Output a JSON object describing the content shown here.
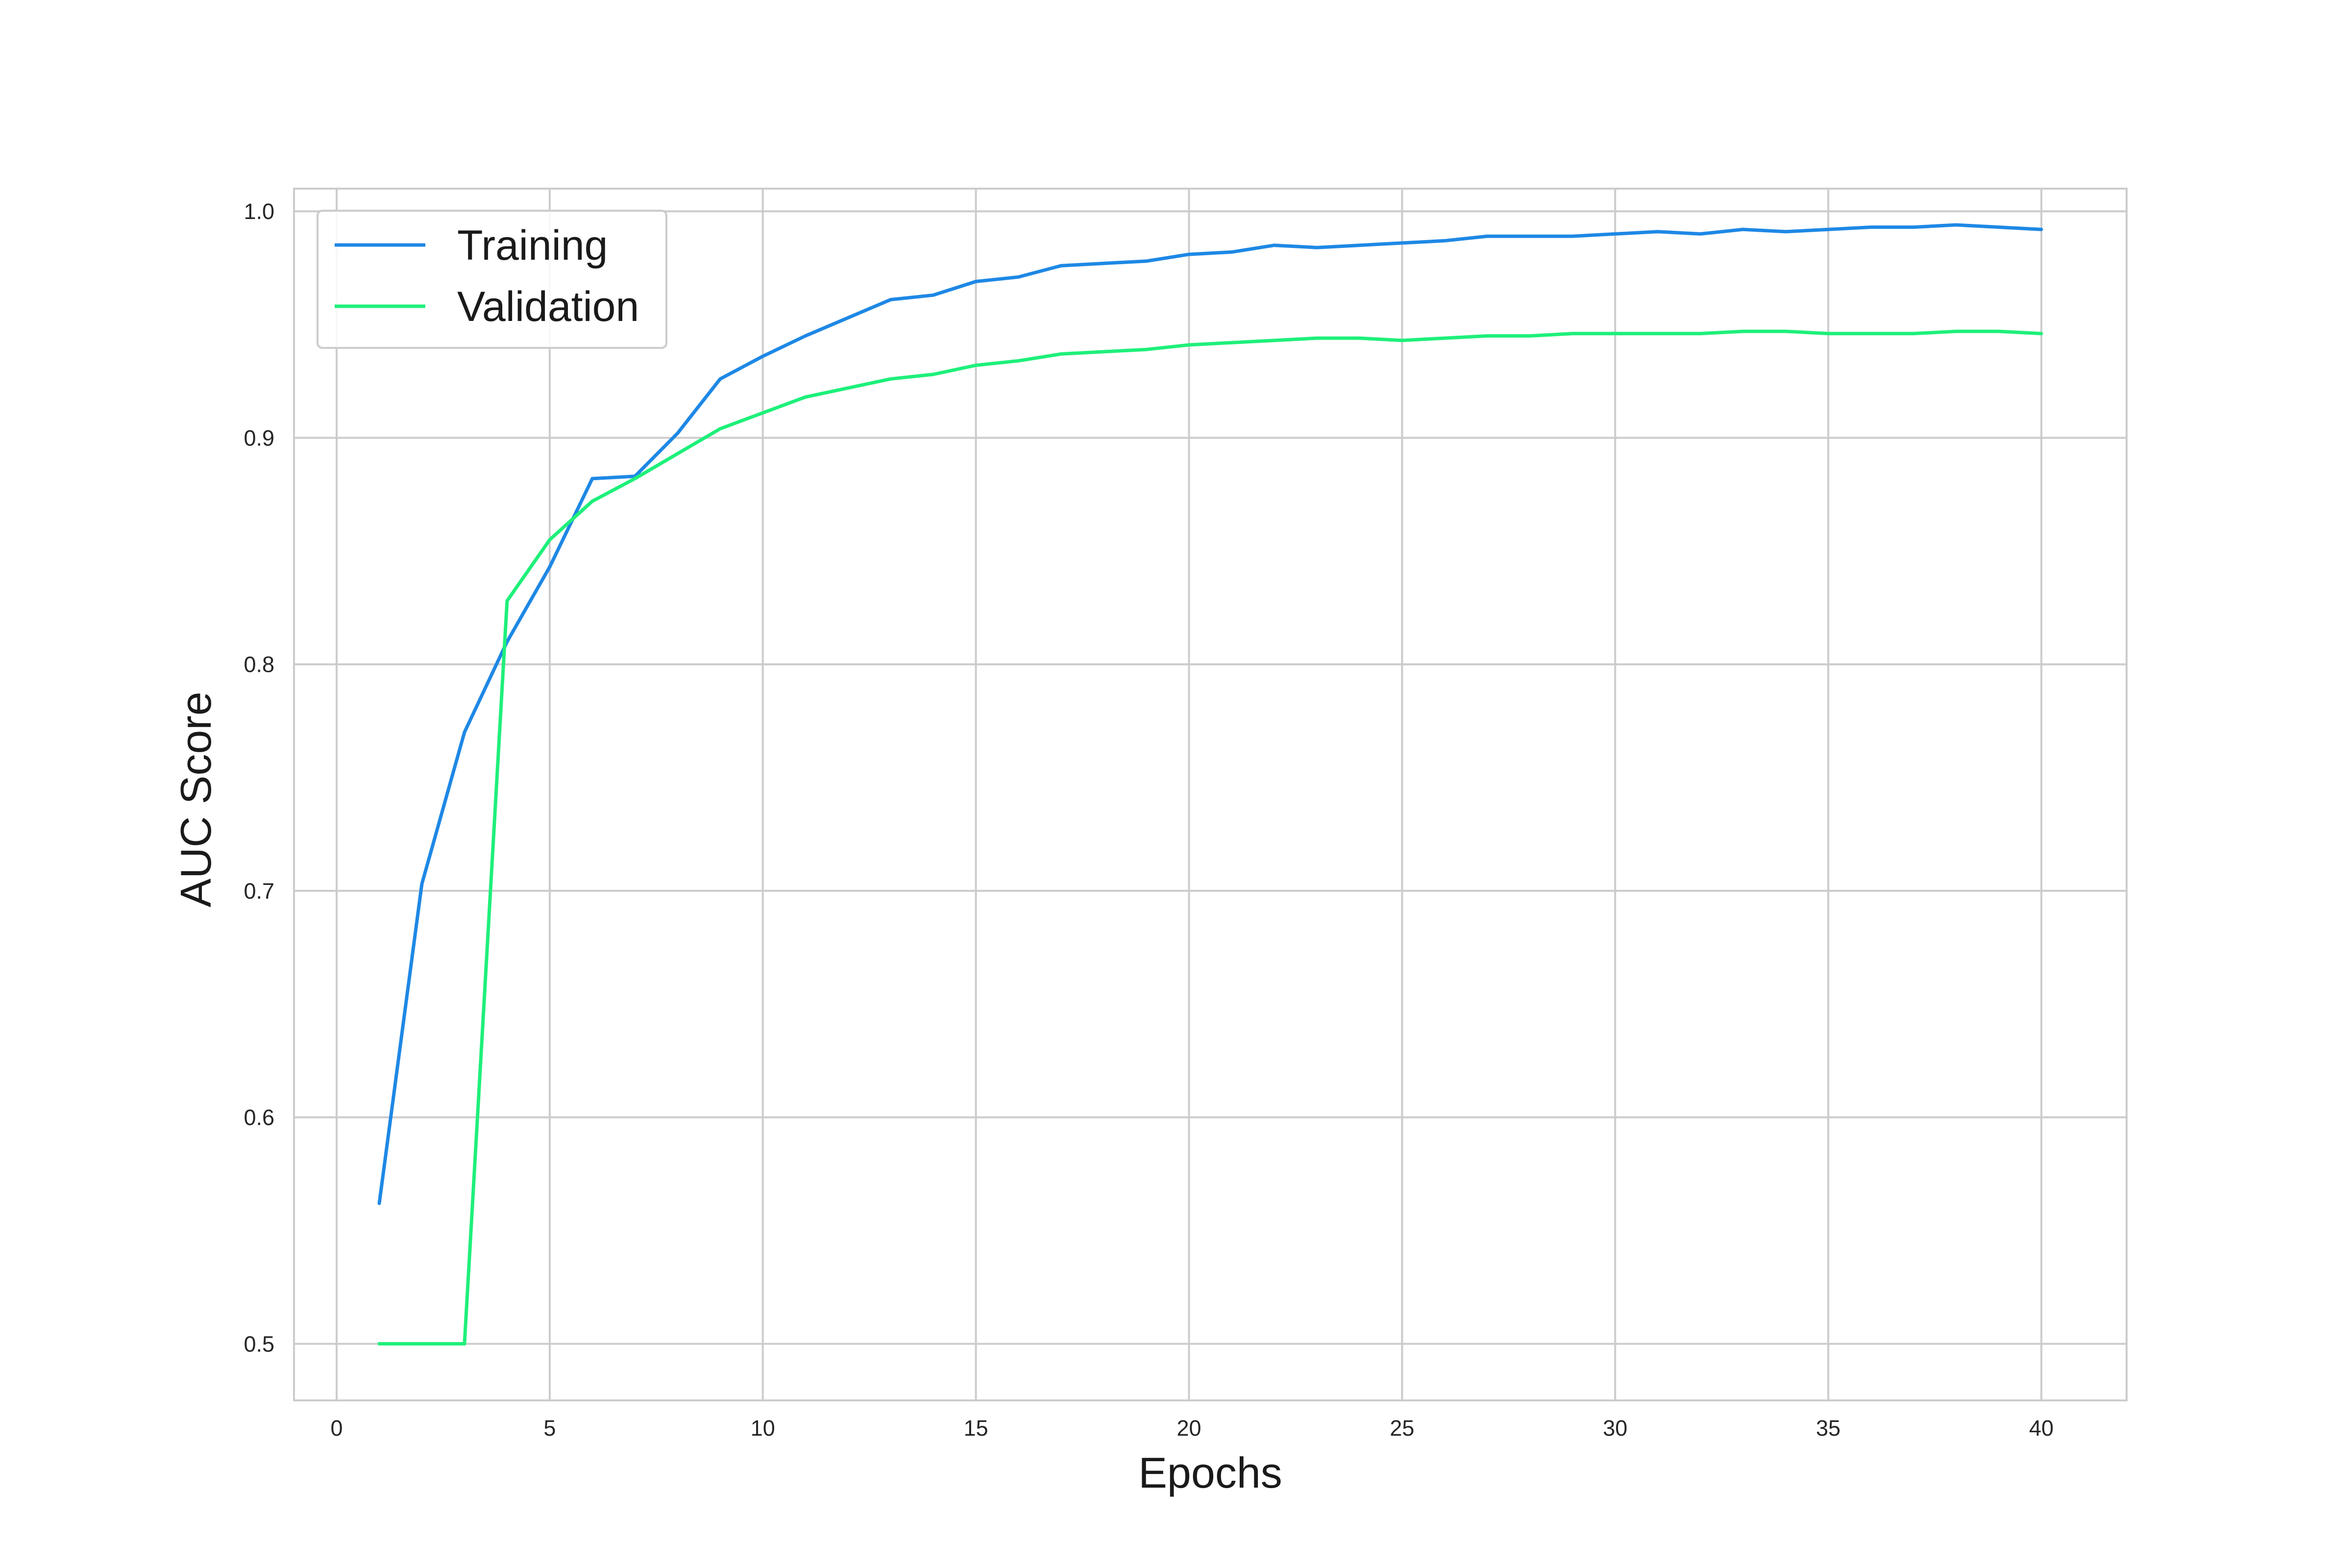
{
  "chart_data": {
    "type": "line",
    "title": "",
    "xlabel": "Epochs",
    "ylabel": "AUC Score",
    "xlim": [
      -1,
      42
    ],
    "ylim": [
      0.475,
      1.01
    ],
    "xticks": [
      0,
      5,
      10,
      15,
      20,
      25,
      30,
      35,
      40
    ],
    "yticks": [
      0.5,
      0.6,
      0.7,
      0.8,
      0.9,
      1.0
    ],
    "ytick_labels": [
      "0.5",
      "0.6",
      "0.7",
      "0.8",
      "0.9",
      "1.0"
    ],
    "grid": true,
    "legend_position": "upper-left",
    "x": [
      1,
      2,
      3,
      4,
      5,
      6,
      7,
      8,
      9,
      10,
      11,
      12,
      13,
      14,
      15,
      16,
      17,
      18,
      19,
      20,
      21,
      22,
      23,
      24,
      25,
      26,
      27,
      28,
      29,
      30,
      31,
      32,
      33,
      34,
      35,
      36,
      37,
      38,
      39,
      40
    ],
    "series": [
      {
        "name": "Training",
        "color": "#1e88e5",
        "values": [
          0.562,
          0.703,
          0.77,
          0.81,
          0.843,
          0.882,
          0.883,
          0.902,
          0.926,
          0.936,
          0.945,
          0.953,
          0.961,
          0.963,
          0.969,
          0.971,
          0.976,
          0.977,
          0.978,
          0.981,
          0.982,
          0.985,
          0.984,
          0.985,
          0.986,
          0.987,
          0.989,
          0.989,
          0.989,
          0.99,
          0.991,
          0.99,
          0.992,
          0.991,
          0.992,
          0.993,
          0.993,
          0.994,
          0.993,
          0.992
        ]
      },
      {
        "name": "Validation",
        "color": "#1ef07a",
        "values": [
          0.5,
          0.5,
          0.5,
          0.828,
          0.855,
          0.872,
          0.882,
          0.893,
          0.904,
          0.911,
          0.918,
          0.922,
          0.926,
          0.928,
          0.932,
          0.934,
          0.937,
          0.938,
          0.939,
          0.941,
          0.942,
          0.943,
          0.944,
          0.944,
          0.943,
          0.944,
          0.945,
          0.945,
          0.946,
          0.946,
          0.946,
          0.946,
          0.947,
          0.947,
          0.946,
          0.946,
          0.946,
          0.947,
          0.947,
          0.946
        ]
      }
    ]
  }
}
